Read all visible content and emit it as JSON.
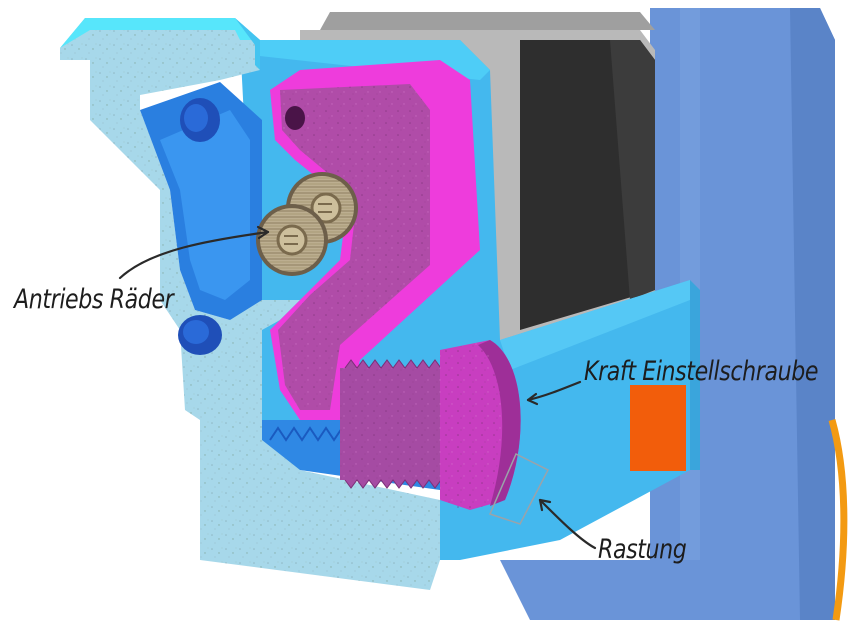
{
  "labels": {
    "drive_wheels": "Antriebs Räder",
    "force_screw": "Kraft Einstellschraube",
    "notch": "Rastung"
  },
  "colors": {
    "housing_cut": "#a7d8ea",
    "housing_blue": "#44b8ee",
    "housing_cyan": "#55e6fb",
    "lever_cut": "#b04ca8",
    "lever_magenta": "#ee3cdc",
    "motor_black": "#2e2e2e",
    "motor_grey": "#b9b9b9",
    "mount_plate": "#6a94d8",
    "accent_orange": "#f25d0b",
    "gear": "#b3a58a",
    "annotation_line": "#2a2a2a"
  }
}
